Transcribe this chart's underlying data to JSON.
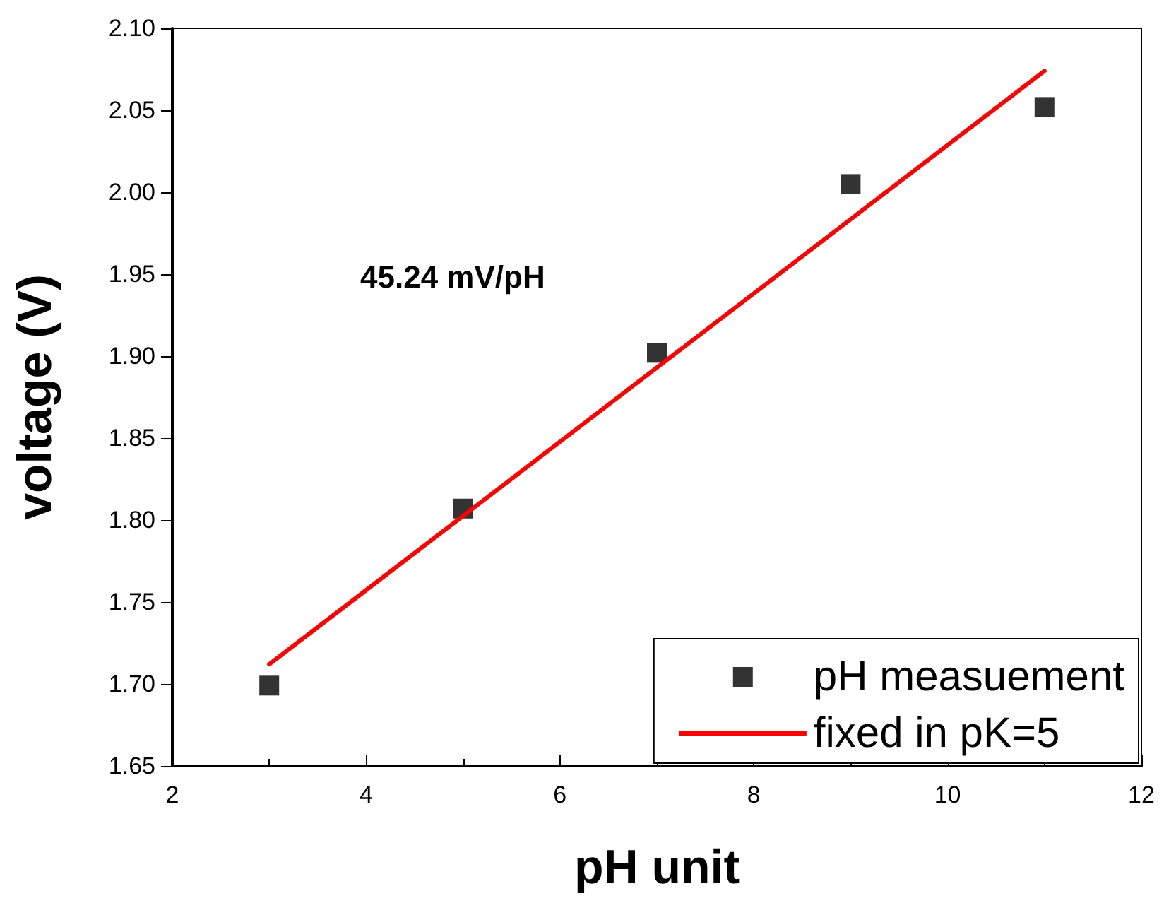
{
  "chart_data": {
    "type": "scatter",
    "xlabel": "pH unit",
    "ylabel": "voltage (V)",
    "series": [
      {
        "name": "pH measuement",
        "color": "#000000",
        "marker": "square",
        "x": [
          3,
          5,
          7,
          9,
          11
        ],
        "values": [
          1.699,
          1.807,
          1.902,
          2.005,
          2.052
        ]
      },
      {
        "name": "fixed in pK=5",
        "type": "line",
        "color": "#ff0000",
        "marker": "none",
        "line_style": "solid",
        "x": [
          3,
          11
        ],
        "values": [
          1.712,
          2.074
        ]
      }
    ],
    "xlim": [
      2,
      12
    ],
    "xticks": [
      2,
      4,
      6,
      8,
      10,
      12
    ],
    "ylim": [
      1.65,
      2.1
    ],
    "yticks": [
      {
        "value": 1.65,
        "label": "1.65"
      },
      {
        "value": 1.7,
        "label": "1.70"
      },
      {
        "value": 1.75,
        "label": "1.75"
      },
      {
        "value": 1.8,
        "label": "1.80"
      },
      {
        "value": 1.85,
        "label": "1.85"
      },
      {
        "value": 1.9,
        "label": "1.90"
      },
      {
        "value": 1.95,
        "label": "1.95"
      },
      {
        "value": 2.0,
        "label": "2.00"
      },
      {
        "value": 2.05,
        "label": "2.05"
      },
      {
        "value": 2.1,
        "label": "2.10"
      }
    ],
    "annotations": [
      "45.24 mV/pH"
    ],
    "grid": false,
    "legend": "bottom right"
  }
}
